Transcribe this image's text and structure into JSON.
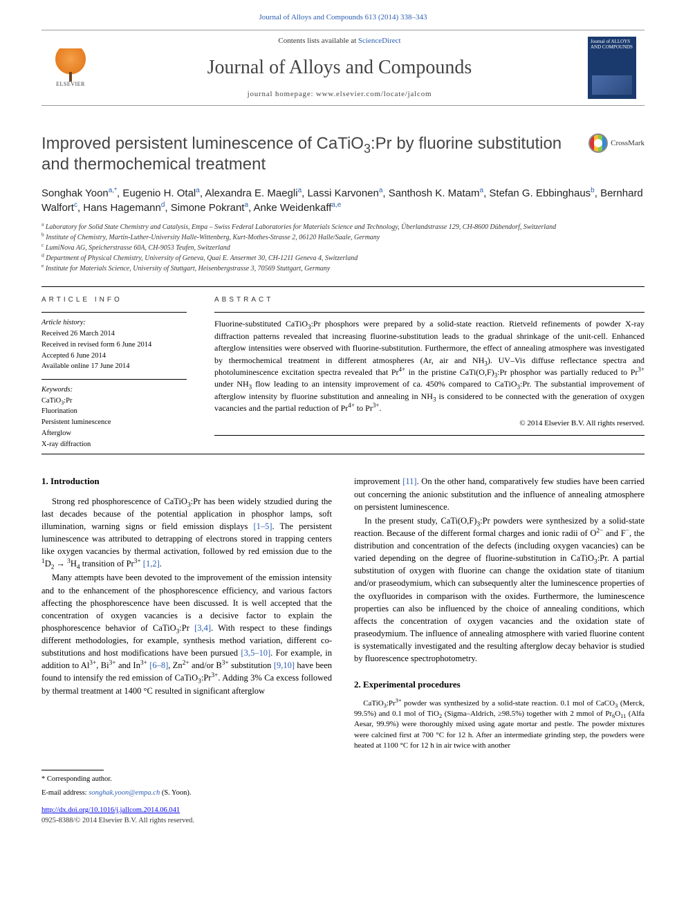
{
  "citation": "Journal of Alloys and Compounds 613 (2014) 338–343",
  "masthead": {
    "publisher": "ELSEVIER",
    "contents_prefix": "Contents lists available at ",
    "contents_link": "ScienceDirect",
    "journal_name": "Journal of Alloys and Compounds",
    "homepage_label": "journal homepage: ",
    "homepage_url": "www.elsevier.com/locate/jalcom",
    "cover_title": "Journal of ALLOYS AND COMPOUNDS"
  },
  "title": "Improved persistent luminescence of CaTiO₃:Pr by fluorine substitution and thermochemical treatment",
  "crossmark": "CrossMark",
  "authors_html": "Songhak Yoon<sup>a,*</sup>, Eugenio H. Otal<sup>a</sup>, Alexandra E. Maegli<sup>a</sup>, Lassi Karvonen<sup>a</sup>, Santhosh K. Matam<sup>a</sup>, Stefan G. Ebbinghaus<sup>b</sup>, Bernhard Walfort<sup>c</sup>, Hans Hagemann<sup>d</sup>, Simone Pokrant<sup>a</sup>, Anke Weidenkaff<sup>a,e</sup>",
  "affiliations": [
    "a Laboratory for Solid State Chemistry and Catalysis, Empa – Swiss Federal Laboratories for Materials Science and Technology, Überlandstrasse 129, CH-8600 Dübendorf, Switzerland",
    "b Institute of Chemistry, Martin-Luther-University Halle-Wittenberg, Kurt-Mothes-Strasse 2, 06120 Halle/Saale, Germany",
    "c LumiNova AG, Speicherstrasse 60A, CH-9053 Teufen, Switzerland",
    "d Department of Physical Chemistry, University of Geneva, Quai E. Ansermet 30, CH-1211 Geneva 4, Switzerland",
    "e Institute for Materials Science, University of Stuttgart, Heisenbergstrasse 3, 70569 Stuttgart, Germany"
  ],
  "info_heading": "ARTICLE INFO",
  "abstract_heading": "ABSTRACT",
  "history_label": "Article history:",
  "history": [
    "Received 26 March 2014",
    "Received in revised form 6 June 2014",
    "Accepted 6 June 2014",
    "Available online 17 June 2014"
  ],
  "keywords_label": "Keywords:",
  "keywords": [
    "CaTiO₃:Pr",
    "Fluorination",
    "Persistent luminescence",
    "Afterglow",
    "X-ray diffraction"
  ],
  "abstract": "Fluorine-substituted CaTiO₃:Pr phosphors were prepared by a solid-state reaction. Rietveld refinements of powder X-ray diffraction patterns revealed that increasing fluorine-substitution leads to the gradual shrinkage of the unit-cell. Enhanced afterglow intensities were observed with fluorine-substitution. Furthermore, the effect of annealing atmosphere was investigated by thermochemical treatment in different atmospheres (Ar, air and NH₃). UV–Vis diffuse reflectance spectra and photoluminescence excitation spectra revealed that Pr⁴⁺ in the pristine CaTi(O,F)₃:Pr phosphor was partially reduced to Pr³⁺ under NH₃ flow leading to an intensity improvement of ca. 450% compared to CaTiO₃:Pr. The substantial improvement of afterglow intensity by fluorine substitution and annealing in NH₃ is considered to be connected with the generation of oxygen vacancies and the partial reduction of Pr⁴⁺ to Pr³⁺.",
  "copyright": "© 2014 Elsevier B.V. All rights reserved.",
  "section1_heading": "1. Introduction",
  "intro_p1": "Strong red phosphorescence of CaTiO₃:Pr has been widely stzudied during the last decades because of the potential application in phosphor lamps, soft illumination, warning signs or field emission displays [1–5]. The persistent luminescence was attributed to detrapping of electrons stored in trapping centers like oxygen vacancies by thermal activation, followed by red emission due to the ¹D₂ → ³H₄ transition of Pr³⁺ [1,2].",
  "intro_p2": "Many attempts have been devoted to the improvement of the emission intensity and to the enhancement of the phosphorescence efficiency, and various factors affecting the phosphorescence have been discussed. It is well accepted that the concentration of oxygen vacancies is a decisive factor to explain the phosphorescence behavior of CaTiO₃:Pr [3,4]. With respect to these findings different methodologies, for example, synthesis method variation, different co-substitutions and host modifications have been pursued [3,5–10]. For example, in addition to Al³⁺, Bi³⁺ and In³⁺ [6–8], Zn²⁺ and/or B³⁺ substitution [9,10] have been found to intensify the red emission of CaTiO₃:Pr³⁺. Adding 3% Ca excess followed by thermal treatment at 1400 °C resulted in significant afterglow",
  "intro_p3": "improvement [11]. On the other hand, comparatively few studies have been carried out concerning the anionic substitution and the influence of annealing atmosphere on persistent luminescence.",
  "intro_p4": "In the present study, CaTi(O,F)₃:Pr powders were synthesized by a solid-state reaction. Because of the different formal charges and ionic radii of O²⁻ and F⁻, the distribution and concentration of the defects (including oxygen vacancies) can be varied depending on the degree of fluorine-substitution in CaTiO₃:Pr. A partial substitution of oxygen with fluorine can change the oxidation state of titanium and/or praseodymium, which can subsequently alter the luminescence properties of the oxyfluorides in comparison with the oxides. Furthermore, the luminescence properties can also be influenced by the choice of annealing conditions, which affects the concentration of oxygen vacancies and the oxidation state of praseodymium. The influence of annealing atmosphere with varied fluorine content is systematically investigated and the resulting afterglow decay behavior is studied by fluorescence spectrophotometry.",
  "section2_heading": "2. Experimental procedures",
  "exp_p1": "CaTiO₃:Pr³⁺ powder was synthesized by a solid-state reaction. 0.1 mol of CaCO₃ (Merck, 99.5%) and 0.1 mol of TiO₂ (Sigma–Aldrich, ≥98.5%) together with 2 mmol of Pr₆O₁₁ (Alfa Aesar, 99.9%) were thoroughly mixed using agate mortar and pestle. The powder mixtures were calcined first at 700 °C for 12 h. After an intermediate grinding step, the powders were heated at 1100 °C for 12 h in air twice with another",
  "corresponding_label": "* Corresponding author.",
  "email_label": "E-mail address: ",
  "email": "songhak.yoon@empa.ch",
  "email_name": " (S. Yoon).",
  "doi": "http://dx.doi.org/10.1016/j.jallcom.2014.06.041",
  "issn_line": "0925-8388/© 2014 Elsevier B.V. All rights reserved.",
  "colors": {
    "link": "#2a5db0",
    "text": "#000000",
    "heading": "#454545",
    "elsevier_orange": "#e67e22",
    "cover_blue": "#1a3a6e"
  }
}
